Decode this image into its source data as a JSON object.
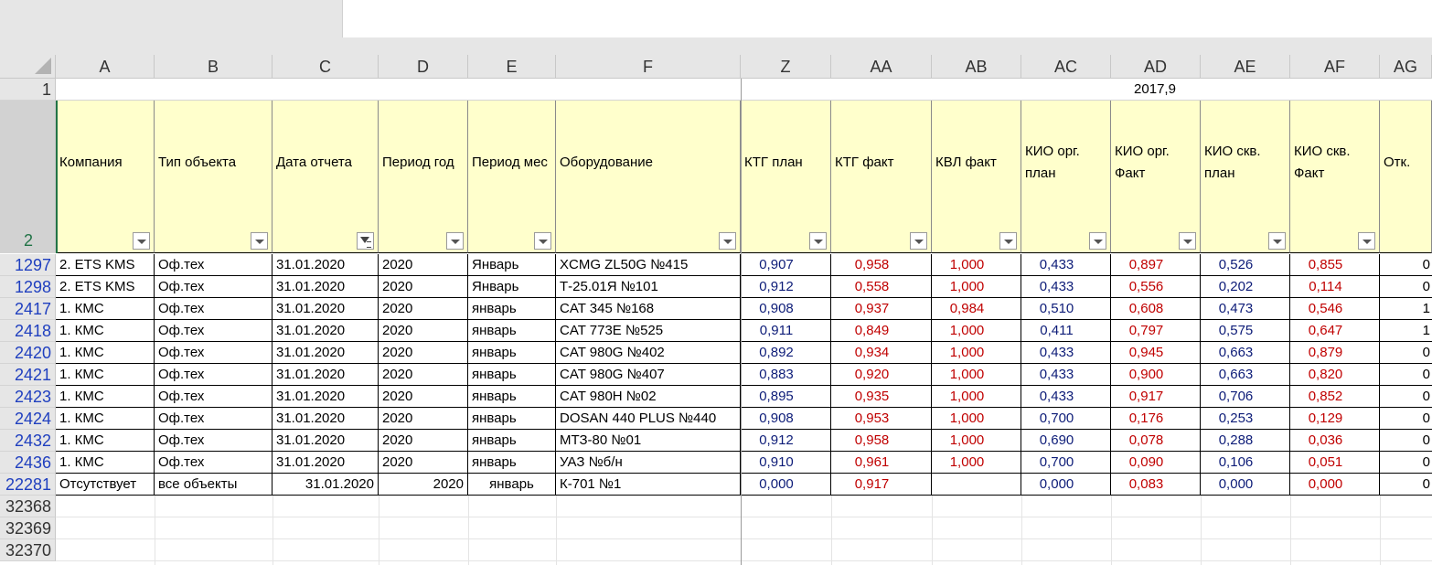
{
  "columns": [
    "A",
    "B",
    "C",
    "D",
    "E",
    "F",
    "Z",
    "AA",
    "AB",
    "AC",
    "AD",
    "AE",
    "AF",
    "AG"
  ],
  "row1": {
    "number": "1",
    "value": "2017,9"
  },
  "header_row": {
    "number": "2",
    "labels": [
      "Компания",
      "Тип объекта",
      "Дата отчета",
      "Период год",
      "Период мес",
      "Оборудование",
      "КТГ план",
      "КТГ факт",
      "КВЛ факт",
      "КИО орг. план",
      "КИО орг. Факт",
      "КИО скв. план",
      "КИО скв. Факт",
      "Отк."
    ]
  },
  "rows": [
    {
      "num": "1297",
      "cells": [
        "2. ETS KMS",
        "Оф.тех",
        "31.01.2020",
        "2020",
        "Январь",
        "XCMG ZL50G №415",
        "0,907",
        "0,958",
        "1,000",
        "0,433",
        "0,897",
        "0,526",
        "0,855",
        "0"
      ]
    },
    {
      "num": "1298",
      "cells": [
        "2. ETS KMS",
        "Оф.тех",
        "31.01.2020",
        "2020",
        "Январь",
        "Т-25.01Я №101",
        "0,912",
        "0,558",
        "1,000",
        "0,433",
        "0,556",
        "0,202",
        "0,114",
        "0"
      ]
    },
    {
      "num": "2417",
      "cells": [
        "1. КМС",
        "Оф.тех",
        "31.01.2020",
        "2020",
        "январь",
        "CAT 345 №168",
        "0,908",
        "0,937",
        "0,984",
        "0,510",
        "0,608",
        "0,473",
        "0,546",
        "1"
      ]
    },
    {
      "num": "2418",
      "cells": [
        "1. КМС",
        "Оф.тех",
        "31.01.2020",
        "2020",
        "январь",
        "CAT 773E №525",
        "0,911",
        "0,849",
        "1,000",
        "0,411",
        "0,797",
        "0,575",
        "0,647",
        "1"
      ]
    },
    {
      "num": "2420",
      "cells": [
        "1. КМС",
        "Оф.тех",
        "31.01.2020",
        "2020",
        "январь",
        "CAT 980G №402",
        "0,892",
        "0,934",
        "1,000",
        "0,433",
        "0,945",
        "0,663",
        "0,879",
        "0"
      ]
    },
    {
      "num": "2421",
      "cells": [
        "1. КМС",
        "Оф.тех",
        "31.01.2020",
        "2020",
        "январь",
        "CAT 980G №407",
        "0,883",
        "0,920",
        "1,000",
        "0,433",
        "0,900",
        "0,663",
        "0,820",
        "0"
      ]
    },
    {
      "num": "2423",
      "cells": [
        "1. КМС",
        "Оф.тех",
        "31.01.2020",
        "2020",
        "январь",
        "CAT 980H №02",
        "0,895",
        "0,935",
        "1,000",
        "0,433",
        "0,917",
        "0,706",
        "0,852",
        "0"
      ]
    },
    {
      "num": "2424",
      "cells": [
        "1. КМС",
        "Оф.тех",
        "31.01.2020",
        "2020",
        "январь",
        "DOSAN 440 PLUS №440",
        "0,908",
        "0,953",
        "1,000",
        "0,700",
        "0,176",
        "0,253",
        "0,129",
        "0"
      ]
    },
    {
      "num": "2432",
      "cells": [
        "1. КМС",
        "Оф.тех",
        "31.01.2020",
        "2020",
        "январь",
        "МТЗ-80 №01",
        "0,912",
        "0,958",
        "1,000",
        "0,690",
        "0,078",
        "0,288",
        "0,036",
        "0"
      ]
    },
    {
      "num": "2436",
      "cells": [
        "1. КМС",
        "Оф.тех",
        "31.01.2020",
        "2020",
        "январь",
        "УАЗ №б/н",
        "0,910",
        "0,961",
        "1,000",
        "0,700",
        "0,090",
        "0,106",
        "0,051",
        "0"
      ]
    },
    {
      "num": "22281",
      "cells": [
        "Отсутствует",
        "все объекты",
        "31.01.2020",
        "2020",
        "январь",
        "К-701 №1",
        "0,000",
        "0,917",
        "",
        "0,000",
        "0,083",
        "0,000",
        "0,000",
        "0"
      ]
    }
  ],
  "empty_rows": [
    "32368",
    "32369",
    "32370"
  ]
}
